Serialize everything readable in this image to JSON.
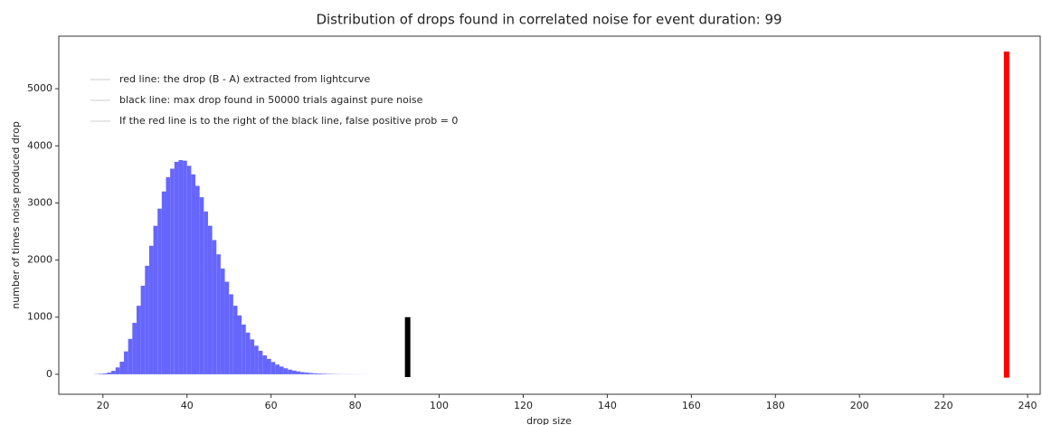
{
  "chart_data": {
    "type": "histogram",
    "title": "Distribution of drops found in correlated noise for event duration: 99",
    "xlabel": "drop size",
    "ylabel": "number of times noise produced drop",
    "bins": [
      18,
      19,
      20,
      21,
      22,
      23,
      24,
      25,
      26,
      27,
      28,
      29,
      30,
      31,
      32,
      33,
      34,
      35,
      36,
      37,
      38,
      39,
      40,
      41,
      42,
      43,
      44,
      45,
      46,
      47,
      48,
      49,
      50,
      51,
      52,
      53,
      54,
      55,
      56,
      57,
      58,
      59,
      60,
      61,
      62,
      63,
      64,
      65,
      66,
      67,
      68,
      69,
      70,
      71,
      72,
      73,
      74,
      75,
      76,
      77,
      78,
      79,
      80,
      81,
      82,
      83,
      84,
      85,
      86,
      87,
      88,
      89,
      90
    ],
    "values": [
      5,
      10,
      15,
      30,
      60,
      120,
      220,
      400,
      620,
      900,
      1200,
      1550,
      1900,
      2250,
      2600,
      2900,
      3200,
      3450,
      3600,
      3720,
      3750,
      3740,
      3650,
      3500,
      3300,
      3100,
      2850,
      2600,
      2350,
      2100,
      1850,
      1620,
      1400,
      1200,
      1030,
      870,
      730,
      610,
      500,
      410,
      330,
      270,
      215,
      170,
      135,
      105,
      82,
      64,
      50,
      38,
      29,
      22,
      17,
      13,
      10,
      7,
      5,
      4,
      3,
      2,
      2,
      1,
      1,
      1,
      1,
      0,
      0,
      0,
      0,
      0,
      0,
      0
    ],
    "color": "#6666ff",
    "vlines": [
      {
        "x": 92.5,
        "ymin": -50,
        "ymax": 1000,
        "color": "#000000"
      },
      {
        "x": 235,
        "ymin": -60,
        "ymax": 5650,
        "color": "#ff0000"
      }
    ],
    "annotations": [
      "red line: the drop (B - A) extracted from lightcurve",
      "black line: max drop found in 50000 trials against pure noise",
      "If the red line is to the right of the black line, false positive prob = 0"
    ],
    "xlim": [
      9.5,
      243
    ],
    "ylim": [
      -350,
      5920
    ],
    "xticks": [
      20,
      40,
      60,
      80,
      100,
      120,
      140,
      160,
      180,
      200,
      220,
      240
    ],
    "yticks": [
      0,
      1000,
      2000,
      3000,
      4000,
      5000
    ],
    "grid": false
  }
}
